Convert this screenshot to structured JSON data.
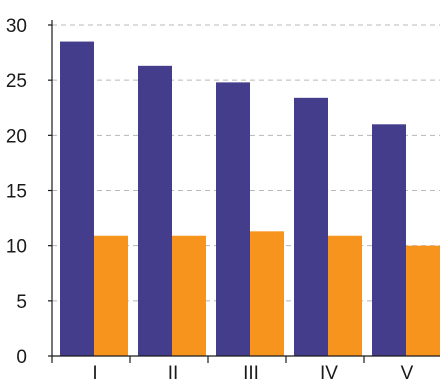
{
  "chart_data": {
    "type": "bar",
    "categories": [
      "I",
      "II",
      "III",
      "IV",
      "V"
    ],
    "series": [
      {
        "values": [
          28.5,
          26.3,
          24.8,
          23.4,
          21.0
        ],
        "color": "#443d8c"
      },
      {
        "values": [
          10.9,
          10.9,
          11.3,
          10.9,
          10.0
        ],
        "color": "#f7941d"
      }
    ],
    "yticks": [
      0,
      5,
      10,
      15,
      20,
      25,
      30
    ],
    "ylim": [
      0,
      30
    ],
    "grid": true,
    "legend": "none"
  }
}
